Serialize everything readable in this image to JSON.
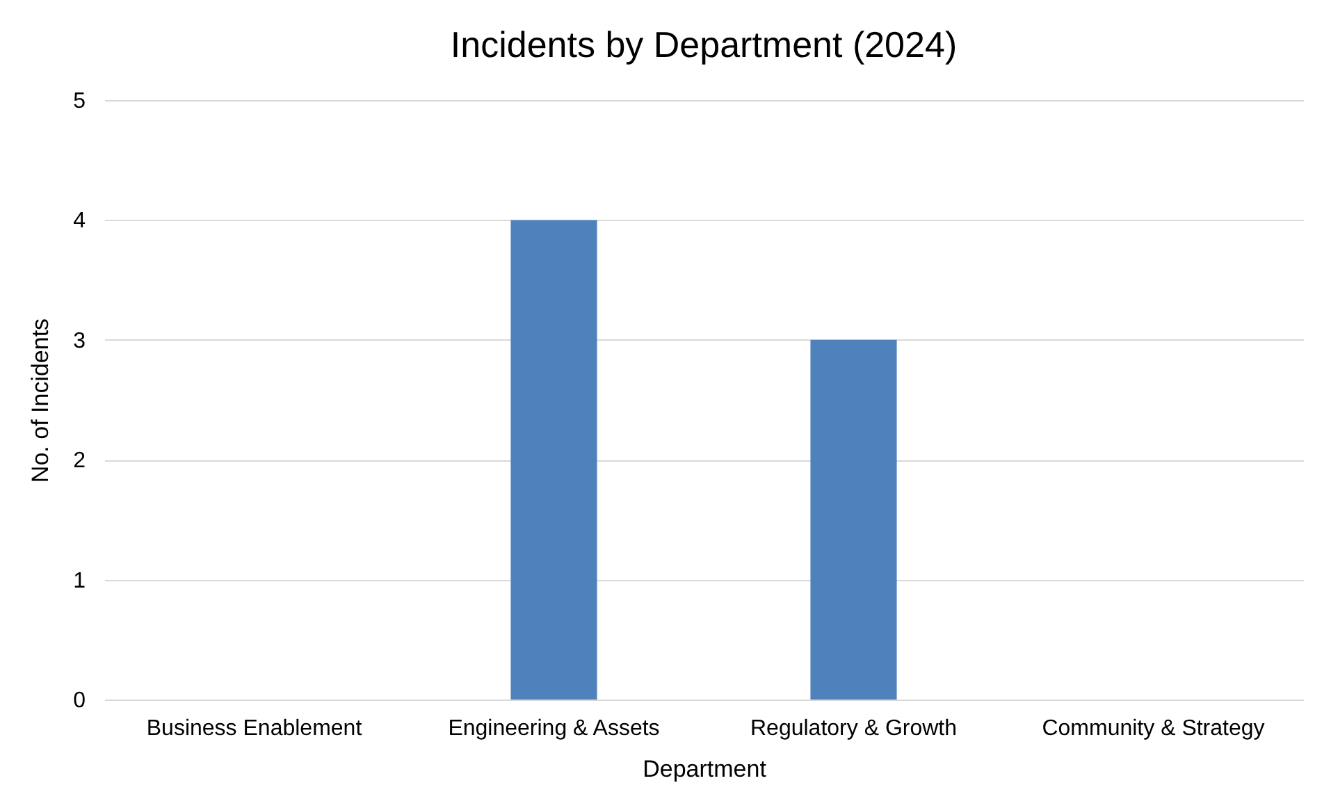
{
  "chart_data": {
    "type": "bar",
    "title": "Incidents by Department (2024)",
    "xlabel": "Department",
    "ylabel": "No. of Incidents",
    "categories": [
      "Business Enablement",
      "Engineering & Assets",
      "Regulatory & Growth",
      "Community & Strategy"
    ],
    "values": [
      0,
      4,
      3,
      0
    ],
    "color": "#4f81bd",
    "ylim": [
      0,
      5
    ],
    "yticks": [
      0,
      1,
      2,
      3,
      4,
      5
    ],
    "grid": "y"
  }
}
